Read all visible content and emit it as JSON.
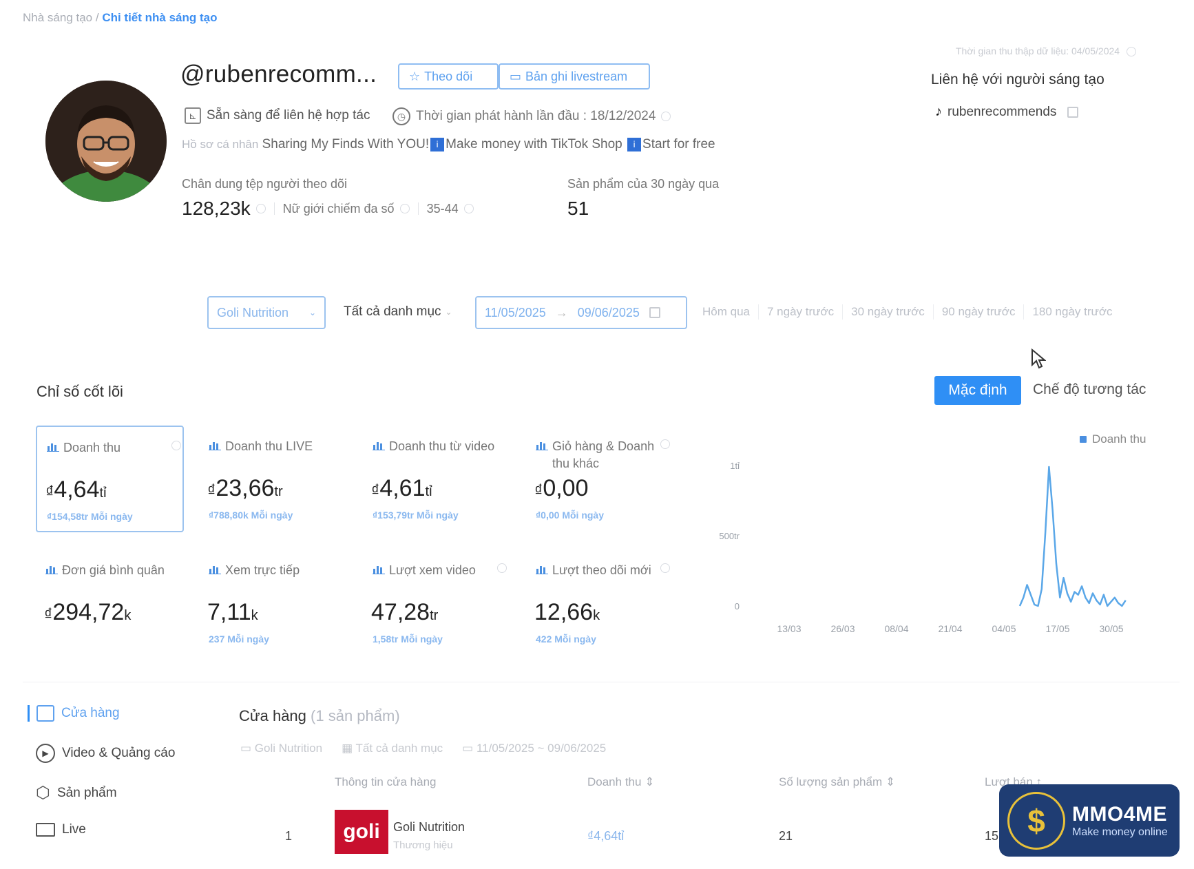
{
  "breadcrumb": {
    "parent": "Nhà sáng tạo",
    "separator": " / ",
    "current": "Chi tiết nhà sáng tạo"
  },
  "profile": {
    "handle": "@rubenrecomm...",
    "follow_label": "Theo dõi",
    "livestream_label": "Bản ghi livestream",
    "ready_label": "Sẵn sàng để liên hệ hợp tác",
    "first_release_label": "Thời gian phát hành lần đầu : 18/12/2024",
    "bio_label": "Hồ sơ cá nhân",
    "bio_part1": "Sharing My Finds With YOU!",
    "bio_part2": "Make money with TikTok Shop",
    "bio_part3": "Start for free",
    "bio_badge": "i",
    "followers_label": "Chân dung tệp người theo dõi",
    "followers_value": "128,23k",
    "gender_label": "Nữ giới chiếm đa số",
    "age_label": "35-44",
    "products_label": "Sản phẩm của 30 ngày qua",
    "products_value": "51"
  },
  "contact": {
    "collect_time": "Thời gian thu thập dữ liệu: 04/05/2024",
    "title": "Liên hệ với người sáng tạo",
    "tiktok_handle": "rubenrecommends"
  },
  "filters": {
    "shop": "Goli Nutrition",
    "category": "Tất cả danh mục",
    "date_from": "11/05/2025",
    "date_to": "09/06/2025",
    "date_arrow": "→",
    "quick": [
      "Hôm qua",
      "7 ngày trước",
      "30 ngày trước",
      "90 ngày trước",
      "180 ngày trước"
    ]
  },
  "core": {
    "title": "Chỉ số cốt lõi",
    "mode_default": "Mặc định",
    "mode_interact": "Chế độ tương tác",
    "metrics": [
      {
        "label": "Doanh thu",
        "cur": "₫",
        "value": "4,64",
        "unit": "tỉ",
        "sub": "₫154,58tr Mỗi ngày"
      },
      {
        "label": "Doanh thu LIVE",
        "cur": "₫",
        "value": "23,66",
        "unit": "tr",
        "sub": "₫788,80k Mỗi ngày"
      },
      {
        "label": "Doanh thu từ video",
        "cur": "₫",
        "value": "4,61",
        "unit": "tỉ",
        "sub": "₫153,79tr Mỗi ngày"
      },
      {
        "label": "Giỏ hàng & Doanh thu khác",
        "cur": "₫",
        "value": "0,00",
        "unit": "",
        "sub": "₫0,00 Mỗi ngày"
      },
      {
        "label": "Đơn giá bình quân",
        "cur": "₫",
        "value": "294,72",
        "unit": "k",
        "sub": ""
      },
      {
        "label": "Xem trực tiếp",
        "cur": "",
        "value": "7,11",
        "unit": "k",
        "sub": "237 Mỗi ngày"
      },
      {
        "label": "Lượt xem video",
        "cur": "",
        "value": "47,28",
        "unit": "tr",
        "sub": "1,58tr Mỗi ngày"
      },
      {
        "label": "Lượt theo dõi mới",
        "cur": "",
        "value": "12,66",
        "unit": "k",
        "sub": "422 Mỗi ngày"
      }
    ]
  },
  "chart_data": {
    "type": "line",
    "title": "",
    "legend": "Doanh thu",
    "legend_position": "top-right",
    "y_ticks": [
      "0",
      "500tr",
      "1tỉ"
    ],
    "y_max_value": 1000,
    "x_ticks": [
      "13/03",
      "26/03",
      "08/04",
      "21/04",
      "04/05",
      "17/05",
      "30/05"
    ],
    "series": [
      {
        "name": "Doanh thu",
        "color": "#5aa7e8",
        "x_days": [
          70,
          71,
          72,
          73,
          74,
          75,
          76,
          77,
          78,
          79,
          80,
          81,
          82,
          83,
          84,
          85,
          86,
          87,
          88,
          89,
          90,
          91,
          92,
          93,
          94,
          95,
          96,
          97,
          98,
          99
        ],
        "values": [
          0,
          60,
          150,
          80,
          10,
          0,
          120,
          520,
          990,
          680,
          300,
          60,
          200,
          90,
          30,
          100,
          80,
          140,
          60,
          20,
          90,
          40,
          10,
          80,
          0,
          30,
          60,
          20,
          0,
          40
        ]
      }
    ],
    "grid": false
  },
  "bottom": {
    "side": [
      "Cửa hàng",
      "Video & Quảng cáo",
      "Sản phẩm",
      "Live"
    ],
    "store_title": "Cửa hàng",
    "store_count": "(1 sản phẩm)",
    "sub_filter_shop": "Goli Nutrition",
    "sub_filter_cat": "Tất cả danh mục",
    "sub_filter_date": "11/05/2025 ~ 09/06/2025",
    "cols": [
      "Thông tin cửa hàng",
      "Doanh thu",
      "Số lượng sản phẩm",
      "Lượt bán"
    ],
    "row": {
      "index": "1",
      "logo": "goli",
      "name": "Goli Nutrition",
      "type": "Thương hiệu",
      "revenue": "₫4,64tỉ",
      "count": "21",
      "sold": "15,7k"
    }
  },
  "watermark": {
    "brand": "MMO4ME",
    "tag": "Make money online",
    "symbol": "$"
  }
}
